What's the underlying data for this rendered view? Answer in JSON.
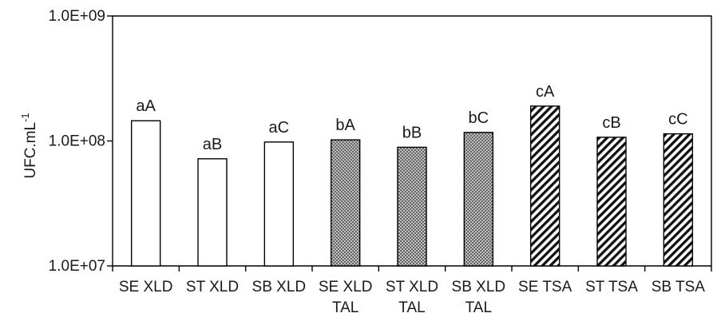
{
  "chart_data": {
    "type": "bar",
    "yscale": "log",
    "ylim": [
      10000000,
      1000000000
    ],
    "yticks": [
      {
        "value": 10000000,
        "label": "1.0E+07"
      },
      {
        "value": 100000000,
        "label": "1.0E+08"
      },
      {
        "value": 1000000000,
        "label": "1.0E+09"
      }
    ],
    "ylabel": "UFC.mL",
    "ylabel_superscript": "-1",
    "xlabel": "",
    "title": "",
    "grid": false,
    "legend": "none",
    "categories": [
      {
        "line1": "SE XLD",
        "line2": ""
      },
      {
        "line1": "ST XLD",
        "line2": ""
      },
      {
        "line1": "SB XLD",
        "line2": ""
      },
      {
        "line1": "SE XLD",
        "line2": "TAL"
      },
      {
        "line1": "ST XLD",
        "line2": "TAL"
      },
      {
        "line1": "SB XLD",
        "line2": "TAL"
      },
      {
        "line1": "SE TSA",
        "line2": ""
      },
      {
        "line1": "ST TSA",
        "line2": ""
      },
      {
        "line1": "SB TSA",
        "line2": ""
      }
    ],
    "values": [
      145000000,
      72000000,
      98000000,
      102000000,
      89000000,
      117000000,
      190000000,
      107000000,
      114000000
    ],
    "data_labels": [
      "aA",
      "aB",
      "aC",
      "bA",
      "bB",
      "bC",
      "cA",
      "cB",
      "cC"
    ],
    "bar_fills": [
      "white",
      "white",
      "white",
      "crosshatch",
      "crosshatch",
      "crosshatch",
      "diagonal",
      "diagonal",
      "diagonal"
    ]
  }
}
